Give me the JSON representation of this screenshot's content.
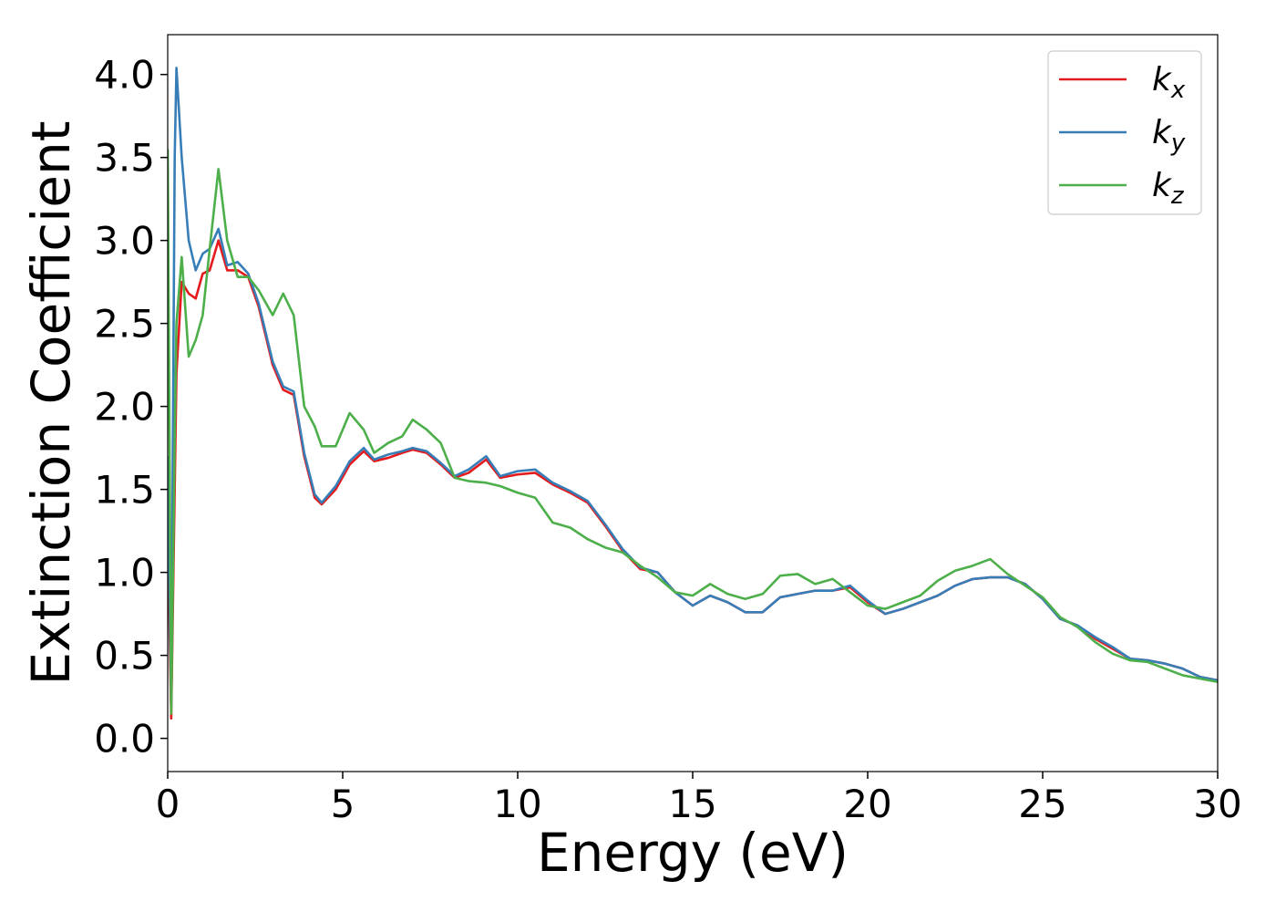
{
  "chart_data": {
    "type": "line",
    "xlabel": "Energy (eV)",
    "ylabel": "Extinction Coefficient",
    "x": [
      0,
      0.1,
      0.2,
      0.25,
      0.4,
      0.6,
      0.8,
      1.0,
      1.2,
      1.45,
      1.7,
      2.0,
      2.3,
      2.6,
      3.0,
      3.3,
      3.6,
      3.9,
      4.2,
      4.4,
      4.8,
      5.2,
      5.6,
      5.9,
      6.3,
      6.7,
      7.0,
      7.4,
      7.8,
      8.2,
      8.6,
      9.1,
      9.5,
      10.0,
      10.5,
      11.0,
      11.5,
      12.0,
      12.5,
      13.0,
      13.5,
      14.0,
      14.5,
      15.0,
      15.5,
      16.0,
      16.5,
      17.0,
      17.5,
      18.0,
      18.5,
      19.0,
      19.5,
      20.0,
      20.5,
      21.0,
      21.5,
      22.0,
      22.5,
      23.0,
      23.5,
      24.0,
      24.5,
      25.0,
      25.5,
      26.0,
      26.5,
      27.0,
      27.5,
      28.0,
      28.5,
      29.0,
      29.5,
      30.0
    ],
    "series": [
      {
        "name": "kx",
        "color": "#e41a1c",
        "values": [
          1.3,
          0.12,
          1.5,
          2.2,
          2.75,
          2.68,
          2.65,
          2.8,
          2.82,
          3.0,
          2.82,
          2.82,
          2.78,
          2.6,
          2.25,
          2.1,
          2.07,
          1.7,
          1.45,
          1.41,
          1.5,
          1.65,
          1.73,
          1.67,
          1.69,
          1.72,
          1.74,
          1.72,
          1.65,
          1.57,
          1.6,
          1.68,
          1.57,
          1.59,
          1.6,
          1.53,
          1.48,
          1.42,
          1.28,
          1.13,
          1.02,
          1.0,
          0.88,
          0.8,
          0.86,
          0.82,
          0.76,
          0.76,
          0.85,
          0.87,
          0.89,
          0.89,
          0.91,
          0.82,
          0.75,
          0.78,
          0.82,
          0.86,
          0.92,
          0.96,
          0.97,
          0.97,
          0.93,
          0.84,
          0.72,
          0.68,
          0.6,
          0.54,
          0.48,
          0.47,
          0.45,
          0.42,
          0.37,
          0.35
        ]
      },
      {
        "name": "ky",
        "color": "#377eb8",
        "values": [
          1.7,
          0.2,
          3.5,
          4.04,
          3.5,
          3.0,
          2.82,
          2.92,
          2.95,
          3.07,
          2.85,
          2.87,
          2.8,
          2.62,
          2.27,
          2.12,
          2.09,
          1.72,
          1.47,
          1.42,
          1.52,
          1.67,
          1.75,
          1.68,
          1.71,
          1.73,
          1.75,
          1.73,
          1.66,
          1.58,
          1.62,
          1.7,
          1.58,
          1.61,
          1.62,
          1.54,
          1.49,
          1.43,
          1.29,
          1.14,
          1.03,
          1.0,
          0.88,
          0.8,
          0.86,
          0.82,
          0.76,
          0.76,
          0.85,
          0.87,
          0.89,
          0.89,
          0.92,
          0.83,
          0.75,
          0.78,
          0.82,
          0.86,
          0.92,
          0.96,
          0.97,
          0.97,
          0.93,
          0.84,
          0.72,
          0.68,
          0.61,
          0.55,
          0.48,
          0.47,
          0.45,
          0.42,
          0.37,
          0.35
        ]
      },
      {
        "name": "kz",
        "color": "#4daf4a",
        "values": [
          3.55,
          0.15,
          1.8,
          2.5,
          2.9,
          2.3,
          2.4,
          2.55,
          2.95,
          3.43,
          3.0,
          2.78,
          2.78,
          2.7,
          2.55,
          2.68,
          2.55,
          2.0,
          1.88,
          1.76,
          1.76,
          1.96,
          1.86,
          1.72,
          1.78,
          1.82,
          1.92,
          1.86,
          1.78,
          1.57,
          1.55,
          1.54,
          1.52,
          1.48,
          1.45,
          1.3,
          1.27,
          1.2,
          1.15,
          1.12,
          1.04,
          0.97,
          0.88,
          0.86,
          0.93,
          0.87,
          0.84,
          0.87,
          0.98,
          0.99,
          0.93,
          0.96,
          0.88,
          0.8,
          0.78,
          0.82,
          0.86,
          0.95,
          1.01,
          1.04,
          1.08,
          0.99,
          0.92,
          0.85,
          0.73,
          0.67,
          0.58,
          0.51,
          0.47,
          0.46,
          0.42,
          0.38,
          0.36,
          0.34
        ]
      }
    ],
    "xlim": [
      0,
      30
    ],
    "xticks": [
      0,
      5,
      10,
      15,
      20,
      25,
      30
    ],
    "ylim": [
      -0.2,
      4.24
    ],
    "yticks": [
      {
        "value": 0,
        "label": "0.0"
      },
      {
        "value": 0.5,
        "label": "0.5"
      },
      {
        "value": 1,
        "label": "1.0"
      },
      {
        "value": 1.5,
        "label": "1.5"
      },
      {
        "value": 2,
        "label": "2.0"
      },
      {
        "value": 2.5,
        "label": "2.5"
      },
      {
        "value": 3,
        "label": "3.0"
      },
      {
        "value": 3.5,
        "label": "3.5"
      },
      {
        "value": 4,
        "label": "4.0"
      }
    ],
    "legend": "upper right",
    "grid": false
  }
}
